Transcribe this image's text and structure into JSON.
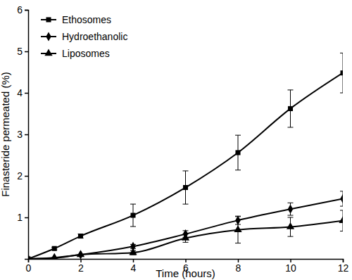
{
  "chart_data": {
    "type": "line",
    "x_label": "Time (hours)",
    "y_label": "Finasteride permeated (%)",
    "x": [
      0,
      1,
      2,
      4,
      6,
      8,
      10,
      12
    ],
    "xlim": [
      0,
      12
    ],
    "xticks": [
      0,
      2,
      4,
      6,
      8,
      10,
      12
    ],
    "ylim": [
      0,
      6
    ],
    "yticks": [
      1,
      2,
      3,
      4,
      5,
      6
    ],
    "legend": "upper left",
    "series": [
      {
        "name": "Ethosomes",
        "color": "#000000",
        "marker": "square",
        "line_style": "solid",
        "values": [
          0,
          0.25,
          0.55,
          1.05,
          1.72,
          2.56,
          3.62,
          4.48
        ],
        "errors": [
          0,
          0.03,
          0.05,
          0.27,
          0.4,
          0.42,
          0.45,
          0.48
        ]
      },
      {
        "name": "Hydroethanolic",
        "color": "#000000",
        "marker": "diamond",
        "line_style": "solid",
        "values": [
          0,
          0.03,
          0.1,
          0.3,
          0.6,
          0.93,
          1.2,
          1.45
        ],
        "errors": [
          0,
          0,
          0,
          0.05,
          0.08,
          0.1,
          0.15,
          0.18
        ]
      },
      {
        "name": "Liposomes",
        "color": "#000000",
        "marker": "triangle",
        "line_style": "solid",
        "values": [
          0,
          0.02,
          0.1,
          0.15,
          0.5,
          0.7,
          0.77,
          0.92
        ],
        "errors": [
          0,
          0,
          0,
          0.05,
          0.1,
          0.32,
          0.23,
          0.25
        ]
      }
    ]
  }
}
